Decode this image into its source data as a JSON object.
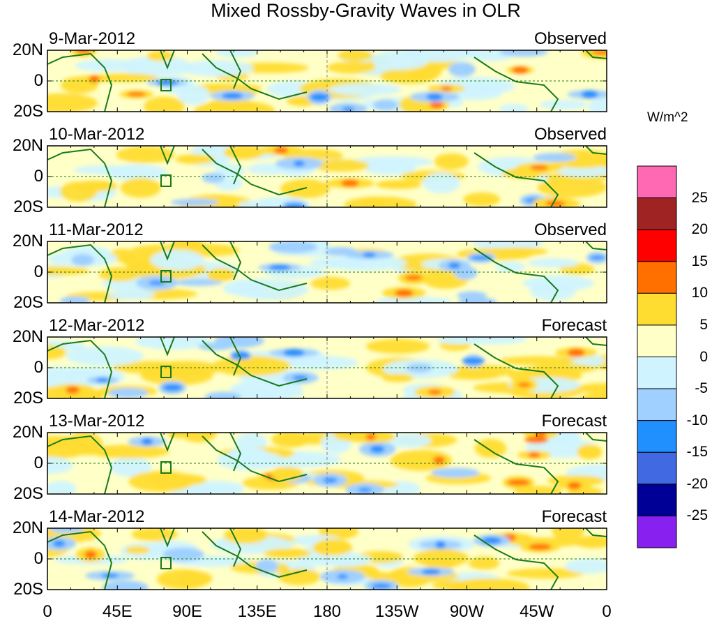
{
  "chart_data": {
    "type": "heatmap",
    "title": "Mixed Rossby-Gravity Waves in OLR",
    "units": "W/m^2",
    "panels": [
      {
        "date": "9-Mar-2012",
        "kind": "Observed"
      },
      {
        "date": "10-Mar-2012",
        "kind": "Observed"
      },
      {
        "date": "11-Mar-2012",
        "kind": "Observed"
      },
      {
        "date": "12-Mar-2012",
        "kind": "Forecast"
      },
      {
        "date": "13-Mar-2012",
        "kind": "Forecast"
      },
      {
        "date": "14-Mar-2012",
        "kind": "Forecast"
      }
    ],
    "y_ticks": [
      "20N",
      "0",
      "20S"
    ],
    "ylim": [
      -20,
      20
    ],
    "x_ticks": [
      "0",
      "45E",
      "90E",
      "135E",
      "180",
      "135W",
      "90W",
      "45W",
      "0"
    ],
    "xlim": [
      0,
      360
    ],
    "colorbar": {
      "levels": [
        "25",
        "20",
        "15",
        "10",
        "5",
        "0",
        "-5",
        "-10",
        "-15",
        "-20",
        "-25"
      ],
      "colors": [
        "#ff69b4",
        "#a02323",
        "#ff0000",
        "#ff7000",
        "#ffdc30",
        "#ffffc8",
        "#d0f4ff",
        "#a0d0ff",
        "#2090ff",
        "#4169e1",
        "#000096",
        "#8820f0"
      ]
    }
  }
}
